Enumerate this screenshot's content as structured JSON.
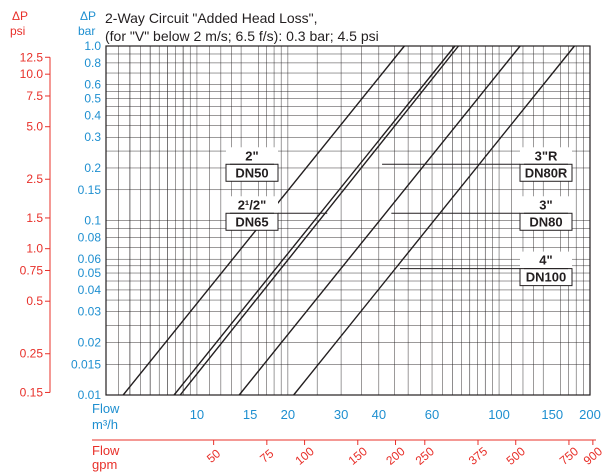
{
  "chart_data": {
    "type": "line",
    "title": "2-Way Circuit \"Added Head Loss\",",
    "subtitle": "(for \"V\" below 2 m/s; 6.5 f/s): 0.3 bar; 4.5 psi",
    "x_axis": {
      "label_line1": "Flow",
      "label_line2": "m³/h",
      "scale": "log",
      "range": [
        5,
        200
      ],
      "ticks": [
        10,
        15,
        20,
        30,
        40,
        60,
        100,
        150,
        200
      ],
      "tick_labels": [
        "10",
        "15",
        "20",
        "30",
        "40",
        "60",
        "100",
        "150",
        "200"
      ]
    },
    "x_axis_secondary": {
      "label_line1": "Flow",
      "label_line2": "gpm",
      "ticks": [
        50,
        75,
        100,
        150,
        200,
        250,
        375,
        500,
        750,
        900
      ],
      "tick_labels": [
        "50",
        "75",
        "100",
        "150",
        "200",
        "250",
        "375",
        "500",
        "750",
        "900"
      ]
    },
    "y_axis": {
      "label_line1": "ΔP",
      "label_line2": "bar",
      "scale": "log",
      "range": [
        0.01,
        1.0
      ],
      "ticks": [
        0.01,
        0.015,
        0.02,
        0.03,
        0.04,
        0.05,
        0.06,
        0.08,
        0.1,
        0.15,
        0.2,
        0.3,
        0.4,
        0.5,
        0.6,
        0.8,
        1.0
      ],
      "tick_labels": [
        "0.01",
        "0.015",
        "0.02",
        "0.03",
        "0.04",
        "0.05",
        "0.06",
        "0.08",
        "0.1",
        "0.15",
        "0.2",
        "0.3",
        "0.4",
        "0.5",
        "0.6",
        "0.8",
        "1.0"
      ]
    },
    "y_axis_secondary": {
      "label_line1": "ΔP",
      "label_line2": "psi",
      "ticks": [
        0.15,
        0.25,
        0.5,
        0.75,
        1.0,
        1.5,
        2.5,
        5.0,
        7.5,
        10.0,
        12.5
      ],
      "tick_labels": [
        "0.15",
        "0.25",
        "0.5",
        "0.75",
        "1.0",
        "1.5",
        "2.5",
        "5.0",
        "7.5",
        "10.0",
        "12.5"
      ]
    },
    "grid": true,
    "series": [
      {
        "name_line1": "2\"",
        "name_line2": "DN50",
        "x": [
          5.7,
          48.6
        ],
        "y": [
          0.01,
          1.0
        ],
        "label_side": "left",
        "label_flow_at": 18.5,
        "label_y_bar": 0.21
      },
      {
        "name_line1": "2¹/2\"",
        "name_line2": "DN65",
        "x": [
          8.4,
          71.4
        ],
        "y": [
          0.01,
          1.0
        ],
        "label_side": "left",
        "label_flow_at": 27.0,
        "label_y_bar": 0.11
      },
      {
        "name_line1": "",
        "name_line2": "",
        "x": [
          8.8,
          73.4
        ],
        "y": [
          0.01,
          1.0
        ],
        "label_side": "none"
      },
      {
        "name_line1": "3\"R",
        "name_line2": "DN80R",
        "x": [
          13.8,
          117.4
        ],
        "y": [
          0.01,
          1.0
        ],
        "label_side": "right",
        "label_flow_at": 41.0,
        "label_y_bar": 0.21
      },
      {
        "name_line1": "3\"",
        "name_line2": "DN80",
        "x": [
          20.9,
          177.6
        ],
        "y": [
          0.01,
          1.0
        ],
        "label_side": "right",
        "label_flow_at": 44.0,
        "label_y_bar": 0.11
      },
      {
        "name_line1": "4\"",
        "name_line2": "DN100",
        "x": [
          0,
          0
        ],
        "y": [
          0,
          0
        ],
        "label_side": "right",
        "label_flow_at": 47.0,
        "label_y_bar": 0.053,
        "note": "label only"
      }
    ],
    "colors": {
      "primary_axis": "#1e8fd0",
      "secondary_axis": "#e8302a",
      "curves": "#231f20",
      "grid": "#231f20"
    }
  }
}
